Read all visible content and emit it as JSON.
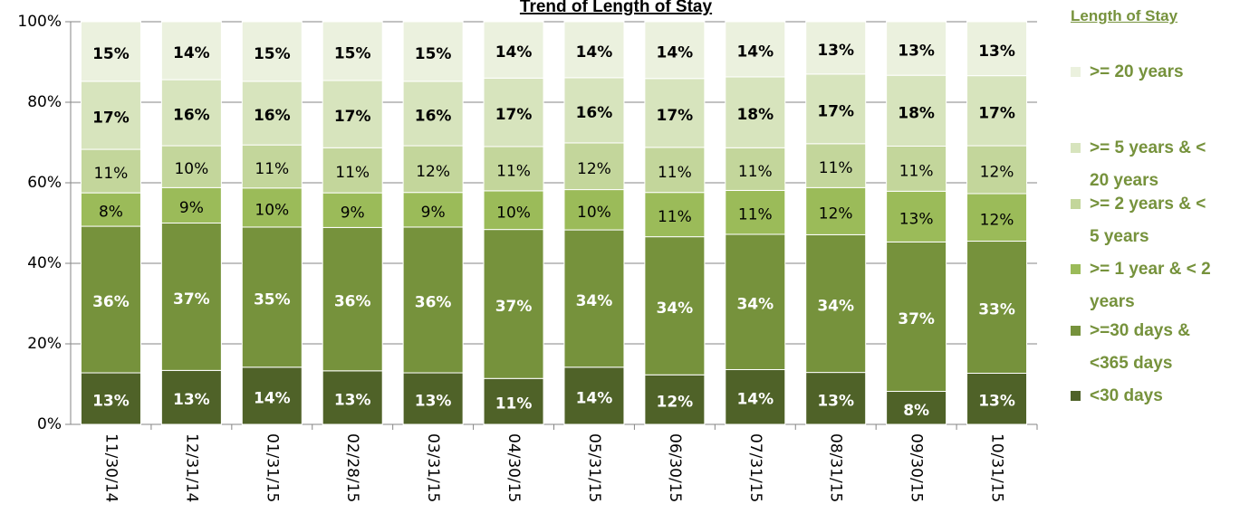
{
  "chart_data": {
    "type": "stacked-bar-100",
    "title": "Trend of Length of Stay",
    "legend_title": "Length of Stay",
    "categories": [
      "11/30/14",
      "12/31/14",
      "01/31/15",
      "02/28/15",
      "03/31/15",
      "04/30/15",
      "05/31/15",
      "06/30/15",
      "07/31/15",
      "08/31/15",
      "09/30/15",
      "10/31/15"
    ],
    "ylim": [
      0,
      100
    ],
    "yticks": [
      {
        "value": 0,
        "label": "0%"
      },
      {
        "value": 20,
        "label": "20%"
      },
      {
        "value": 40,
        "label": "40%"
      },
      {
        "value": 60,
        "label": "60%"
      },
      {
        "value": 80,
        "label": "80%"
      },
      {
        "value": 100,
        "label": "100%"
      }
    ],
    "grid": true,
    "legend": "right",
    "series": [
      {
        "name": "<30 days",
        "color": "#4f6228",
        "values": [
          12.8,
          13.4,
          14.2,
          13.3,
          12.8,
          11.4,
          14.2,
          12.3,
          13.6,
          12.9,
          8.2,
          12.7
        ],
        "value_labels": [
          "13%",
          "13%",
          "14%",
          "13%",
          "13%",
          "11%",
          "14%",
          "12%",
          "14%",
          "13%",
          "8%",
          "13%"
        ]
      },
      {
        "name": ">=30 days & <365 days",
        "color": "#76923c",
        "values": [
          36.4,
          36.6,
          34.8,
          35.6,
          36.2,
          37.0,
          34.1,
          34.3,
          33.6,
          34.2,
          37.1,
          32.8
        ],
        "value_labels": [
          "36%",
          "37%",
          "35%",
          "36%",
          "36%",
          "37%",
          "34%",
          "34%",
          "34%",
          "34%",
          "37%",
          "33%"
        ]
      },
      {
        "name": ">= 1 year & < 2 years",
        "color": "#9bbb59",
        "values": [
          8.3,
          8.8,
          9.7,
          8.6,
          8.6,
          9.6,
          10.0,
          11.0,
          10.9,
          11.7,
          12.6,
          11.8
        ],
        "value_labels": [
          "8%",
          "9%",
          "10%",
          "9%",
          "9%",
          "10%",
          "10%",
          "11%",
          "11%",
          "12%",
          "13%",
          "12%"
        ]
      },
      {
        "name": ">= 2 years & < 5 years",
        "color": "#c3d69b",
        "values": [
          10.8,
          10.4,
          10.7,
          11.2,
          11.6,
          11.0,
          11.6,
          11.2,
          10.6,
          10.9,
          11.2,
          11.9
        ],
        "value_labels": [
          "11%",
          "10%",
          "11%",
          "11%",
          "12%",
          "11%",
          "12%",
          "11%",
          "11%",
          "11%",
          "11%",
          "12%"
        ]
      },
      {
        "name": ">= 5 years & < 20 years",
        "color": "#d7e4bd",
        "values": [
          16.9,
          16.4,
          15.8,
          16.7,
          16.0,
          17.0,
          16.2,
          17.1,
          17.6,
          17.3,
          17.6,
          17.4
        ],
        "value_labels": [
          "17%",
          "16%",
          "16%",
          "17%",
          "16%",
          "17%",
          "16%",
          "17%",
          "18%",
          "17%",
          "18%",
          "17%"
        ]
      },
      {
        "name": ">= 20 years",
        "color": "#ebf1de",
        "values": [
          14.8,
          14.4,
          14.8,
          14.6,
          14.8,
          14.0,
          13.9,
          14.1,
          13.7,
          13.0,
          13.3,
          13.4
        ],
        "value_labels": [
          "15%",
          "14%",
          "15%",
          "15%",
          "15%",
          "14%",
          "14%",
          "14%",
          "14%",
          "13%",
          "13%",
          "13%"
        ]
      }
    ]
  }
}
